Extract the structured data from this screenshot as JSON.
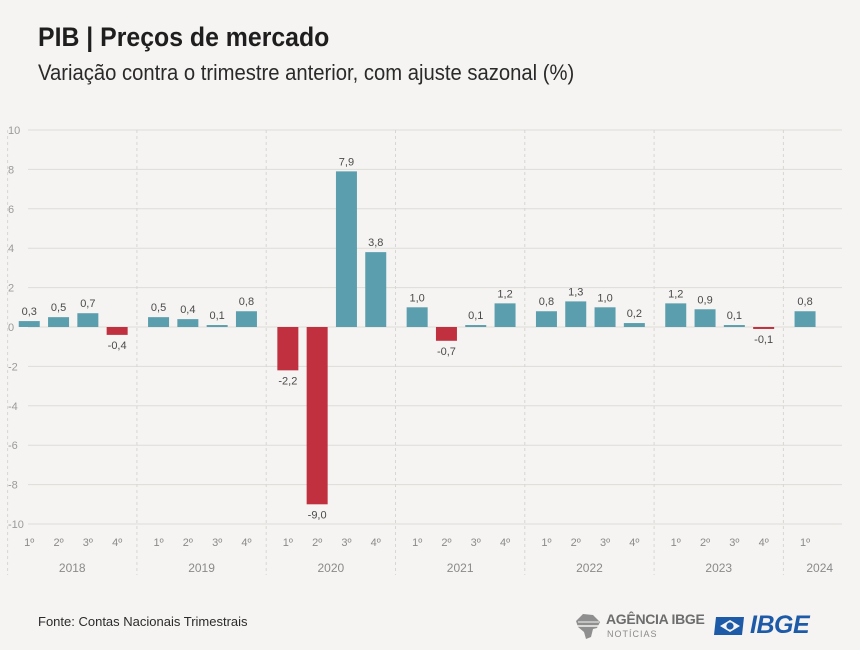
{
  "header": {
    "title": "PIB | Preços de mercado",
    "subtitle": "Variação contra o trimestre anterior, com ajuste sazonal (%)"
  },
  "footer": {
    "source": "Fonte: Contas Nacionais Trimestrais",
    "agencia_name": "AGÊNCIA IBGE",
    "agencia_sub": "NOTÍCIAS",
    "ibge_name": "IBGE"
  },
  "colors": {
    "positive": "#5b9fae",
    "negative": "#c0303f",
    "grid": "#dddcd8",
    "text": "#5a5a5a"
  },
  "chart_data": {
    "type": "bar",
    "title": "PIB | Preços de mercado",
    "subtitle": "Variação contra o trimestre anterior, com ajuste sazonal (%)",
    "ylim": [
      -10,
      10
    ],
    "yticks": [
      10,
      8,
      6,
      4,
      2,
      0,
      -2,
      -4,
      -6,
      -8,
      -10
    ],
    "grid": true,
    "groups": [
      {
        "year": "2018",
        "quarters": [
          "1º",
          "2º",
          "3º",
          "4º"
        ],
        "values": [
          0.3,
          0.5,
          0.7,
          -0.4
        ],
        "labels": [
          "0,3",
          "0,5",
          "0,7",
          "-0,4"
        ]
      },
      {
        "year": "2019",
        "quarters": [
          "1º",
          "2º",
          "3º",
          "4º"
        ],
        "values": [
          0.5,
          0.4,
          0.1,
          0.8
        ],
        "labels": [
          "0,5",
          "0,4",
          "0,1",
          "0,8"
        ]
      },
      {
        "year": "2020",
        "quarters": [
          "1º",
          "2º",
          "3º",
          "4º"
        ],
        "values": [
          -2.2,
          -9.0,
          7.9,
          3.8
        ],
        "labels": [
          "-2,2",
          "-9,0",
          "7,9",
          "3,8"
        ]
      },
      {
        "year": "2021",
        "quarters": [
          "1º",
          "2º",
          "3º",
          "4º"
        ],
        "values": [
          1.0,
          -0.7,
          0.1,
          1.2
        ],
        "labels": [
          "1,0",
          "-0,7",
          "0,1",
          "1,2"
        ]
      },
      {
        "year": "2022",
        "quarters": [
          "1º",
          "2º",
          "3º",
          "4º"
        ],
        "values": [
          0.8,
          1.3,
          1.0,
          0.2
        ],
        "labels": [
          "0,8",
          "1,3",
          "1,0",
          "0,2"
        ]
      },
      {
        "year": "2023",
        "quarters": [
          "1º",
          "2º",
          "3º",
          "4º"
        ],
        "values": [
          1.2,
          0.9,
          0.1,
          -0.1
        ],
        "labels": [
          "1,2",
          "0,9",
          "0,1",
          "-0,1"
        ]
      },
      {
        "year": "2024",
        "quarters": [
          "1º"
        ],
        "values": [
          0.8
        ],
        "labels": [
          "0,8"
        ]
      }
    ]
  }
}
